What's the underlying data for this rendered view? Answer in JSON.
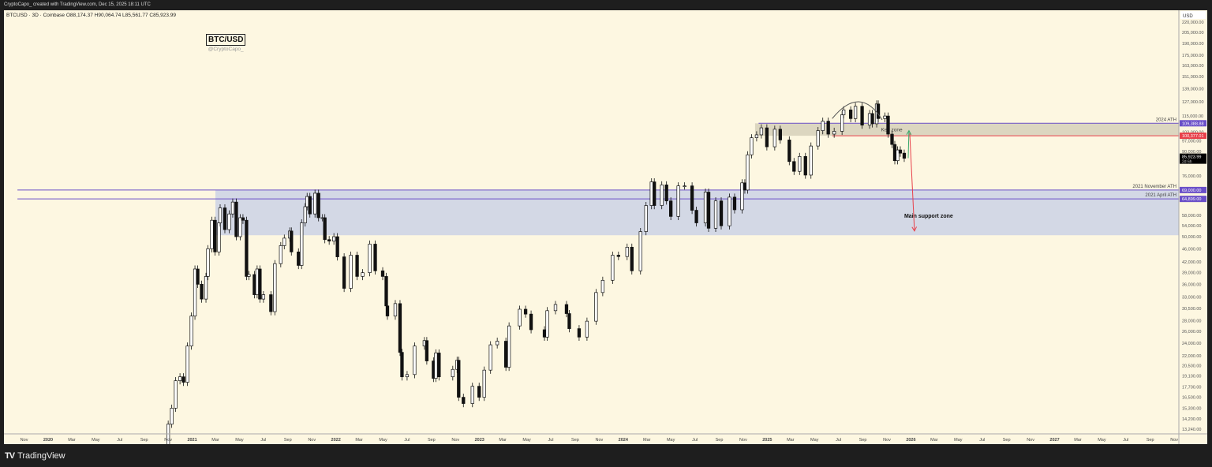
{
  "topbar": {
    "text": "CryptoCapo_ created with TradingView.com, Dec 15, 2025 18:11 UTC"
  },
  "legend": {
    "text": "BTCUSD · 3D · Coinbase  O88,174.37  H90,064.74  L85,561.77  C85,923.99"
  },
  "watermark": {
    "title": "BTC/USD",
    "author": "@CryptoCapo_"
  },
  "footer": {
    "logo": "TV",
    "brand": "TradingView"
  },
  "colors": {
    "background": "#fdf7e1",
    "key_zone": "#d8d2bd",
    "support_zone": "#d3d8e5",
    "purple": "#6a4fc8",
    "red": "#e8404a",
    "green": "#3aa86b",
    "candle_down": "#111111",
    "candle_up": "#ffffff"
  },
  "chart_data": {
    "type": "candlestick",
    "symbol": "BTCUSD",
    "interval": "3D",
    "yscale": "log",
    "currency": "USD",
    "ylim": [
      13240,
      220000
    ],
    "xlim": [
      "2019-10-15",
      "2027-12-01"
    ],
    "y_ticks": [
      220000,
      205000,
      190000,
      175000,
      163000,
      151000,
      139000,
      127000,
      115000,
      103000,
      97000,
      90000,
      76000,
      58000,
      54000,
      50000,
      46000,
      42000,
      39000,
      36000,
      33000,
      30500,
      28000,
      26000,
      24000,
      22000,
      20500,
      19100,
      17700,
      16500,
      15300,
      14200,
      13240
    ],
    "y_tick_labels": [
      "220,000.00",
      "205,000.00",
      "190,000.00",
      "175,000.00",
      "163,000.00",
      "151,000.00",
      "139,000.00",
      "127,000.00",
      "115,000.00",
      "103,000.00",
      "97,000.00",
      "90,000.00",
      "76,000.00",
      "58,000.00",
      "54,000.00",
      "50,000.00",
      "46,000.00",
      "42,000.00",
      "39,000.00",
      "36,000.00",
      "33,000.00",
      "30,500.00",
      "28,000.00",
      "26,000.00",
      "24,000.00",
      "22,000.00",
      "20,500.00",
      "19,100.00",
      "17,700.00",
      "16,500.00",
      "15,300.00",
      "14,200.00",
      "13,240.00"
    ],
    "x_ticks": [
      [
        "2019-11-01",
        "Nov"
      ],
      [
        "2020-01-01",
        "2020"
      ],
      [
        "2020-03-01",
        "Mar"
      ],
      [
        "2020-05-01",
        "May"
      ],
      [
        "2020-07-01",
        "Jul"
      ],
      [
        "2020-09-01",
        "Sep"
      ],
      [
        "2020-11-01",
        "Nov"
      ],
      [
        "2021-01-01",
        "2021"
      ],
      [
        "2021-03-01",
        "Mar"
      ],
      [
        "2021-05-01",
        "May"
      ],
      [
        "2021-07-01",
        "Jul"
      ],
      [
        "2021-09-01",
        "Sep"
      ],
      [
        "2021-11-01",
        "Nov"
      ],
      [
        "2022-01-01",
        "2022"
      ],
      [
        "2022-03-01",
        "Mar"
      ],
      [
        "2022-05-01",
        "May"
      ],
      [
        "2022-07-01",
        "Jul"
      ],
      [
        "2022-09-01",
        "Sep"
      ],
      [
        "2022-11-01",
        "Nov"
      ],
      [
        "2023-01-01",
        "2023"
      ],
      [
        "2023-03-01",
        "Mar"
      ],
      [
        "2023-05-01",
        "May"
      ],
      [
        "2023-07-01",
        "Jul"
      ],
      [
        "2023-09-01",
        "Sep"
      ],
      [
        "2023-11-01",
        "Nov"
      ],
      [
        "2024-01-01",
        "2024"
      ],
      [
        "2024-03-01",
        "Mar"
      ],
      [
        "2024-05-01",
        "May"
      ],
      [
        "2024-07-01",
        "Jul"
      ],
      [
        "2024-09-01",
        "Sep"
      ],
      [
        "2024-11-01",
        "Nov"
      ],
      [
        "2025-01-01",
        "2025"
      ],
      [
        "2025-03-01",
        "Mar"
      ],
      [
        "2025-05-01",
        "May"
      ],
      [
        "2025-07-01",
        "Jul"
      ],
      [
        "2025-09-01",
        "Sep"
      ],
      [
        "2025-11-01",
        "Nov"
      ],
      [
        "2026-01-01",
        "2026"
      ],
      [
        "2026-03-01",
        "Mar"
      ],
      [
        "2026-05-01",
        "May"
      ],
      [
        "2026-07-01",
        "Jul"
      ],
      [
        "2026-09-01",
        "Sep"
      ],
      [
        "2026-11-01",
        "Nov"
      ],
      [
        "2027-01-01",
        "2027"
      ],
      [
        "2027-03-01",
        "Mar"
      ],
      [
        "2027-05-01",
        "May"
      ],
      [
        "2027-07-01",
        "Jul"
      ],
      [
        "2027-09-01",
        "Sep"
      ],
      [
        "2027-11-01",
        "Nov"
      ]
    ],
    "closes": [
      [
        "2020-10-20",
        11900
      ],
      [
        "2020-11-01",
        13700
      ],
      [
        "2020-11-10",
        15300
      ],
      [
        "2020-11-20",
        18500
      ],
      [
        "2020-12-01",
        19000
      ],
      [
        "2020-12-10",
        18300
      ],
      [
        "2020-12-20",
        23500
      ],
      [
        "2020-12-30",
        28900
      ],
      [
        "2021-01-08",
        40000
      ],
      [
        "2021-01-15",
        36000
      ],
      [
        "2021-01-25",
        32500
      ],
      [
        "2021-02-05",
        38000
      ],
      [
        "2021-02-10",
        46000
      ],
      [
        "2021-02-20",
        56000
      ],
      [
        "2021-02-28",
        45000
      ],
      [
        "2021-03-10",
        55000
      ],
      [
        "2021-03-13",
        61000
      ],
      [
        "2021-03-25",
        52500
      ],
      [
        "2021-04-05",
        58500
      ],
      [
        "2021-04-14",
        63500
      ],
      [
        "2021-04-23",
        50000
      ],
      [
        "2021-05-03",
        57000
      ],
      [
        "2021-05-10",
        56000
      ],
      [
        "2021-05-19",
        38000
      ],
      [
        "2021-05-25",
        38500
      ],
      [
        "2021-06-08",
        33500
      ],
      [
        "2021-06-15",
        40000
      ],
      [
        "2021-06-22",
        32500
      ],
      [
        "2021-07-01",
        33500
      ],
      [
        "2021-07-20",
        29800
      ],
      [
        "2021-07-30",
        41500
      ],
      [
        "2021-08-14",
        47000
      ],
      [
        "2021-08-23",
        49500
      ],
      [
        "2021-09-06",
        52000
      ],
      [
        "2021-09-10",
        45000
      ],
      [
        "2021-09-28",
        41000
      ],
      [
        "2021-10-06",
        55000
      ],
      [
        "2021-10-15",
        61500
      ],
      [
        "2021-10-20",
        66000
      ],
      [
        "2021-10-27",
        58500
      ],
      [
        "2021-11-09",
        67500
      ],
      [
        "2021-11-18",
        57000
      ],
      [
        "2021-11-28",
        57000
      ],
      [
        "2021-12-04",
        49000
      ],
      [
        "2021-12-15",
        48500
      ],
      [
        "2021-12-27",
        50000
      ],
      [
        "2022-01-05",
        43500
      ],
      [
        "2022-01-22",
        35000
      ],
      [
        "2022-02-08",
        44000
      ],
      [
        "2022-02-24",
        38000
      ],
      [
        "2022-03-10",
        39000
      ],
      [
        "2022-03-28",
        47500
      ],
      [
        "2022-04-11",
        39500
      ],
      [
        "2022-04-30",
        38000
      ],
      [
        "2022-05-09",
        31000
      ],
      [
        "2022-05-12",
        28900
      ],
      [
        "2022-06-01",
        31500
      ],
      [
        "2022-06-13",
        22500
      ],
      [
        "2022-06-18",
        19000
      ],
      [
        "2022-07-01",
        19300
      ],
      [
        "2022-07-20",
        23500
      ],
      [
        "2022-08-14",
        24400
      ],
      [
        "2022-08-20",
        21200
      ],
      [
        "2022-09-06",
        18800
      ],
      [
        "2022-09-12",
        22400
      ],
      [
        "2022-09-20",
        19000
      ],
      [
        "2022-10-25",
        20000
      ],
      [
        "2022-11-05",
        21300
      ],
      [
        "2022-11-09",
        16500
      ],
      [
        "2022-11-21",
        15800
      ],
      [
        "2022-12-14",
        17800
      ],
      [
        "2022-12-31",
        16500
      ],
      [
        "2023-01-13",
        19900
      ],
      [
        "2023-01-29",
        23700
      ],
      [
        "2023-02-15",
        24300
      ],
      [
        "2023-03-09",
        20300
      ],
      [
        "2023-03-17",
        27000
      ],
      [
        "2023-04-13",
        30300
      ],
      [
        "2023-04-28",
        29300
      ],
      [
        "2023-05-12",
        26300
      ],
      [
        "2023-06-15",
        25000
      ],
      [
        "2023-06-22",
        30000
      ],
      [
        "2023-07-13",
        31300
      ],
      [
        "2023-08-10",
        29400
      ],
      [
        "2023-08-17",
        26500
      ],
      [
        "2023-09-11",
        25000
      ],
      [
        "2023-10-01",
        27900
      ],
      [
        "2023-10-24",
        34000
      ],
      [
        "2023-11-10",
        37000
      ],
      [
        "2023-12-05",
        44000
      ],
      [
        "2023-12-20",
        43600
      ],
      [
        "2024-01-11",
        46500
      ],
      [
        "2024-01-23",
        39500
      ],
      [
        "2024-02-14",
        51800
      ],
      [
        "2024-02-28",
        62000
      ],
      [
        "2024-03-13",
        73000
      ],
      [
        "2024-03-20",
        62000
      ],
      [
        "2024-04-08",
        71500
      ],
      [
        "2024-04-20",
        64000
      ],
      [
        "2024-05-01",
        57500
      ],
      [
        "2024-05-20",
        71000
      ],
      [
        "2024-06-05",
        71000
      ],
      [
        "2024-06-24",
        60000
      ],
      [
        "2024-07-05",
        55000
      ],
      [
        "2024-07-28",
        68000
      ],
      [
        "2024-08-05",
        53000
      ],
      [
        "2024-08-23",
        64000
      ],
      [
        "2024-09-06",
        53900
      ],
      [
        "2024-09-27",
        65700
      ],
      [
        "2024-10-10",
        60200
      ],
      [
        "2024-10-29",
        72500
      ],
      [
        "2024-11-05",
        69000
      ],
      [
        "2024-11-12",
        88000
      ],
      [
        "2024-11-22",
        99000
      ],
      [
        "2024-12-05",
        101000
      ],
      [
        "2024-12-17",
        106000
      ],
      [
        "2024-12-31",
        93000
      ],
      [
        "2025-01-20",
        105000
      ],
      [
        "2025-02-03",
        97500
      ],
      [
        "2025-02-26",
        84000
      ],
      [
        "2025-03-10",
        78500
      ],
      [
        "2025-03-24",
        87000
      ],
      [
        "2025-04-08",
        76500
      ],
      [
        "2025-04-22",
        93500
      ],
      [
        "2025-05-10",
        104000
      ],
      [
        "2025-05-22",
        111000
      ],
      [
        "2025-06-05",
        101500
      ],
      [
        "2025-06-20",
        103500
      ],
      [
        "2025-07-10",
        116000
      ],
      [
        "2025-07-14",
        120000
      ],
      [
        "2025-08-01",
        113000
      ],
      [
        "2025-08-13",
        123000
      ],
      [
        "2025-08-30",
        108000
      ],
      [
        "2025-09-18",
        117000
      ],
      [
        "2025-09-25",
        109000
      ],
      [
        "2025-10-06",
        125000
      ],
      [
        "2025-10-10",
        113000
      ],
      [
        "2025-10-27",
        115000
      ],
      [
        "2025-11-04",
        101500
      ],
      [
        "2025-11-14",
        94500
      ],
      [
        "2025-11-21",
        84500
      ],
      [
        "2025-11-28",
        91000
      ],
      [
        "2025-12-05",
        89000
      ],
      [
        "2025-12-15",
        85923.99
      ]
    ],
    "last_price": {
      "value": 85923.99,
      "label": "85,923.99",
      "countdown": "2d 6h"
    },
    "zones": [
      {
        "name": "Key zone",
        "label": "Key zone",
        "from": "2024-12-01",
        "top": 109388.88,
        "bottom": 100377.01
      },
      {
        "name": "Main support zone",
        "label": "Main support zone",
        "from": "2021-03-01",
        "top": 69000,
        "bottom": 50500
      }
    ],
    "levels": [
      {
        "price": 109388.88,
        "label": "2024 ATH",
        "axis_label": "109,388.88",
        "color": "purple",
        "from": "2024-12-10"
      },
      {
        "price": 100377.01,
        "label": "",
        "axis_label": "100,377.01",
        "color": "red",
        "from": "2025-06-15"
      },
      {
        "price": 69000,
        "label": "2021 November ATH",
        "axis_label": "69,000.00",
        "color": "purple",
        "from": "2019-10-15"
      },
      {
        "price": 64899,
        "label": "2021 April ATH",
        "axis_label": "64,899.00",
        "color": "purple",
        "from": "2019-10-15"
      }
    ],
    "arrows": [
      {
        "color": "green",
        "from": [
          "2025-12-25",
          86000
        ],
        "to": [
          "2025-12-27",
          104000
        ]
      },
      {
        "color": "red",
        "from": [
          "2025-12-29",
          102000
        ],
        "to": [
          "2026-01-10",
          52000
        ]
      }
    ],
    "arc": {
      "from": [
        "2025-06-15",
        113000
      ],
      "peak": [
        "2025-08-25",
        127000
      ],
      "to": [
        "2025-10-20",
        112000
      ]
    }
  }
}
